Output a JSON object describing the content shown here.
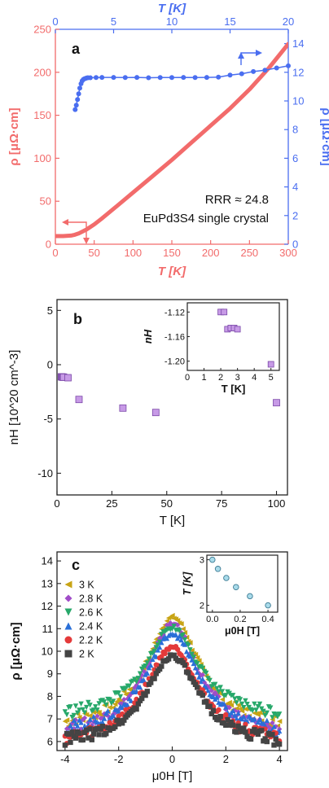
{
  "colors": {
    "red": "#f26b6b",
    "blue": "#4a6ef0",
    "purple": "#c79ae6",
    "purple_stroke": "#7a48a8",
    "axis": "#222222"
  },
  "chart_data": [
    {
      "panel": "a",
      "type": "line",
      "annotation_ratio": "RRR ≈ 24.8",
      "annotation_sample": "EuPd3S4 single crystal",
      "x_bottom": {
        "label": "T [K]",
        "range": [
          0,
          300
        ],
        "ticks": [
          0,
          50,
          100,
          150,
          200,
          250,
          300
        ]
      },
      "x_top": {
        "label": "T [K]",
        "range": [
          0,
          20
        ],
        "ticks": [
          0,
          5,
          10,
          15,
          20
        ]
      },
      "y_left": {
        "label": "ρ [μΩ·cm]",
        "range": [
          0,
          250
        ],
        "ticks": [
          0,
          50,
          100,
          150,
          200,
          250
        ]
      },
      "y_right": {
        "label": "ρ [μΩ·cm]",
        "range": [
          0,
          15
        ],
        "ticks": [
          0,
          2,
          4,
          6,
          8,
          10,
          12,
          14
        ]
      },
      "series": [
        {
          "axes": "bottom-left",
          "x": [
            0,
            10,
            20,
            25,
            30,
            40,
            50,
            60,
            80,
            100,
            125,
            150,
            175,
            200,
            225,
            250,
            275,
            300
          ],
          "y": [
            9.5,
            9.5,
            10,
            11,
            12.5,
            17,
            23,
            30,
            45,
            60,
            79,
            98,
            118,
            138,
            158,
            180,
            205,
            233
          ]
        },
        {
          "axes": "top-right",
          "x": [
            1.7,
            1.8,
            1.9,
            2.0,
            2.1,
            2.2,
            2.3,
            2.4,
            2.5,
            2.6,
            2.7,
            2.8,
            3.0,
            3.5,
            4,
            5,
            6,
            7,
            8,
            9,
            10,
            11,
            12,
            13,
            14,
            15,
            16,
            17,
            18,
            19,
            20
          ],
          "y": [
            9.4,
            9.7,
            10.1,
            10.5,
            10.9,
            11.2,
            11.4,
            11.5,
            11.55,
            11.58,
            11.6,
            11.62,
            11.62,
            11.63,
            11.64,
            11.64,
            11.63,
            11.64,
            11.62,
            11.63,
            11.63,
            11.64,
            11.63,
            11.64,
            11.66,
            11.8,
            11.9,
            12.05,
            12.15,
            12.3,
            12.45
          ]
        }
      ]
    },
    {
      "panel": "b",
      "type": "scatter",
      "xlabel": "T [K]",
      "ylabel": "nH [10^20 cm^-3]",
      "xlim": [
        0,
        105
      ],
      "ylim": [
        -12,
        6
      ],
      "xticks": [
        0,
        25,
        50,
        75,
        100
      ],
      "yticks": [
        5,
        0,
        -5,
        -10
      ],
      "x": [
        2,
        2.2,
        2.6,
        2.8,
        3,
        5,
        10,
        30,
        45,
        100
      ],
      "y": [
        -1.12,
        -1.12,
        -1.15,
        -1.15,
        -1.15,
        -1.2,
        -3.2,
        -4.0,
        -4.4,
        -3.5
      ],
      "inset": {
        "xlabel": "T [K]",
        "ylabel": "nH",
        "xlim": [
          0,
          5.5
        ],
        "ylim": [
          -1.215,
          -1.105
        ],
        "xticks": [
          0,
          1,
          2,
          3,
          4,
          5
        ],
        "yticks": [
          -1.12,
          -1.16,
          -1.2
        ],
        "ytick_labels": [
          "-1.12",
          "-1.16",
          "-1.20"
        ],
        "x": [
          2.0,
          2.2,
          2.4,
          2.6,
          2.8,
          3.0,
          5.0
        ],
        "y": [
          -1.12,
          -1.12,
          -1.148,
          -1.146,
          -1.146,
          -1.148,
          -1.205
        ]
      }
    },
    {
      "panel": "c",
      "type": "scatter",
      "xlabel": "μ0H [T]",
      "ylabel": "ρ [μΩ·cm]",
      "xlim": [
        -4.3,
        4.3
      ],
      "ylim": [
        5.6,
        14.4
      ],
      "xticks": [
        -4,
        -2,
        0,
        2,
        4
      ],
      "yticks": [
        6,
        7,
        8,
        9,
        10,
        11,
        12,
        13,
        14
      ],
      "legend_position": "top-left",
      "series": [
        {
          "name": "3 K",
          "color": "#c8a415",
          "marker": "triangle-left",
          "peak": 11.5,
          "edge": 6.9
        },
        {
          "name": "2.8 K",
          "color": "#a04cc8",
          "marker": "diamond",
          "peak": 11.2,
          "edge": 6.6
        },
        {
          "name": "2.6 K",
          "color": "#27a86a",
          "marker": "triangle-down",
          "peak": 11.05,
          "edge": 7.3
        },
        {
          "name": "2.4 K",
          "color": "#2a6fd8",
          "marker": "triangle-up",
          "peak": 10.8,
          "edge": 6.6
        },
        {
          "name": "2.2 K",
          "color": "#e43a3a",
          "marker": "circle",
          "peak": 10.2,
          "edge": 6.2
        },
        {
          "name": "2 K",
          "color": "#444444",
          "marker": "square",
          "peak": 9.8,
          "edge": 6.1
        }
      ],
      "inset": {
        "xlabel": "μ0H [T]",
        "ylabel": "T [K]",
        "xlim": [
          -0.04,
          0.47
        ],
        "ylim": [
          1.85,
          3.1
        ],
        "xticks": [
          0.0,
          0.2,
          0.4
        ],
        "xtick_labels": [
          "0.0",
          "0.2",
          "0.4"
        ],
        "yticks": [
          2,
          3
        ],
        "x": [
          0.0,
          0.04,
          0.1,
          0.17,
          0.27,
          0.4
        ],
        "y": [
          3.0,
          2.8,
          2.6,
          2.4,
          2.2,
          2.0
        ]
      }
    }
  ]
}
